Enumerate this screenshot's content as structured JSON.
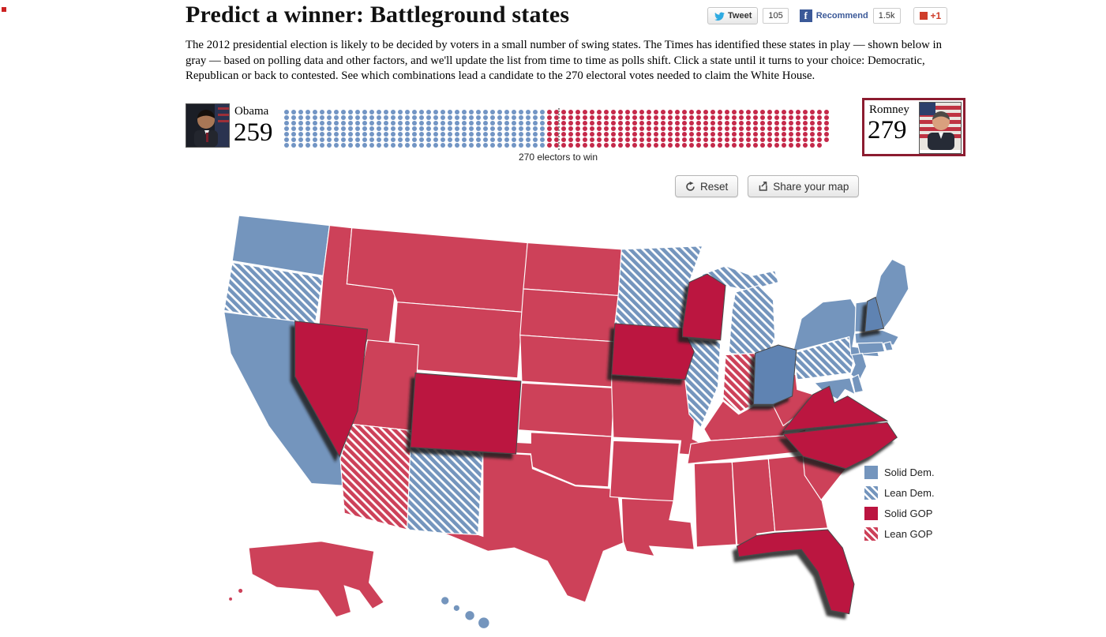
{
  "page": {
    "title": "Predict a winner: Battleground states",
    "description": "The 2012 presidential election is likely to be decided by voters in a small number of swing states. The Times has identified these states in play — shown below in gray — based on polling data and other factors, and we'll update the list from time to time as polls shift. Click a state until it turns to your choice: Democratic, Republican or back to contested. See which combinations lead a candidate to the 270 electoral votes needed to claim the White House."
  },
  "social": {
    "tweet_label": "Tweet",
    "tweet_count": "105",
    "facebook_label": "Recommend",
    "facebook_count": "1.5k",
    "gplus_label": "+1"
  },
  "icons": {
    "facebook_f": "f"
  },
  "scoreboard": {
    "obama": {
      "name": "Obama",
      "votes": 259
    },
    "romney": {
      "name": "Romney",
      "votes": 279
    },
    "total": 538,
    "threshold": 270,
    "threshold_label": "270 electors to win",
    "leader": "romney"
  },
  "toolbar": {
    "reset_label": "Reset",
    "share_label": "Share your map"
  },
  "legend": {
    "items": [
      {
        "label": "Solid Dem.",
        "style": "solid-dem"
      },
      {
        "label": "Lean Dem.",
        "style": "lean-dem"
      },
      {
        "label": "Solid GOP",
        "style": "solid-gop"
      },
      {
        "label": "Lean GOP",
        "style": "lean-gop"
      }
    ]
  },
  "colors": {
    "solid_dem": "#7495bd",
    "solid_gop": "#cd4159",
    "picked_dem": "#5e83b2",
    "picked_gop": "#bb1440",
    "dem_dot": "#7295c4",
    "gop_dot": "#c5294a",
    "leader_border": "#8c1c30"
  },
  "map": {
    "states": [
      {
        "id": "WA",
        "category": "solid-dem"
      },
      {
        "id": "OR",
        "category": "lean-dem"
      },
      {
        "id": "CA",
        "category": "solid-dem"
      },
      {
        "id": "ID",
        "category": "solid-gop"
      },
      {
        "id": "MT",
        "category": "solid-gop"
      },
      {
        "id": "WY",
        "category": "solid-gop"
      },
      {
        "id": "UT",
        "category": "solid-gop"
      },
      {
        "id": "AZ",
        "category": "lean-gop"
      },
      {
        "id": "NM",
        "category": "lean-dem"
      },
      {
        "id": "ND",
        "category": "solid-gop"
      },
      {
        "id": "SD",
        "category": "solid-gop"
      },
      {
        "id": "NE",
        "category": "solid-gop"
      },
      {
        "id": "KS",
        "category": "solid-gop"
      },
      {
        "id": "OK",
        "category": "solid-gop"
      },
      {
        "id": "TX",
        "category": "solid-gop"
      },
      {
        "id": "MN",
        "category": "lean-dem"
      },
      {
        "id": "MO",
        "category": "solid-gop"
      },
      {
        "id": "AR",
        "category": "solid-gop"
      },
      {
        "id": "LA",
        "category": "solid-gop"
      },
      {
        "id": "IL",
        "category": "lean-dem"
      },
      {
        "id": "MI",
        "category": "lean-dem"
      },
      {
        "id": "IN",
        "category": "lean-gop"
      },
      {
        "id": "KY",
        "category": "solid-gop"
      },
      {
        "id": "TN",
        "category": "solid-gop"
      },
      {
        "id": "MS",
        "category": "solid-gop"
      },
      {
        "id": "AL",
        "category": "solid-gop"
      },
      {
        "id": "GA",
        "category": "solid-gop"
      },
      {
        "id": "SC",
        "category": "solid-gop"
      },
      {
        "id": "WV",
        "category": "solid-gop"
      },
      {
        "id": "PA",
        "category": "lean-dem"
      },
      {
        "id": "NY",
        "category": "solid-dem"
      },
      {
        "id": "NJ",
        "category": "solid-dem"
      },
      {
        "id": "DE",
        "category": "solid-dem"
      },
      {
        "id": "MD",
        "category": "solid-dem"
      },
      {
        "id": "CT",
        "category": "solid-dem"
      },
      {
        "id": "RI",
        "category": "solid-dem"
      },
      {
        "id": "MA",
        "category": "solid-dem"
      },
      {
        "id": "VT",
        "category": "solid-dem"
      },
      {
        "id": "ME",
        "category": "solid-dem"
      },
      {
        "id": "AK",
        "category": "solid-gop"
      },
      {
        "id": "HI",
        "category": "solid-dem"
      },
      {
        "id": "NV",
        "category": "tossup",
        "picked": "gop"
      },
      {
        "id": "CO",
        "category": "tossup",
        "picked": "gop"
      },
      {
        "id": "IA",
        "category": "tossup",
        "picked": "gop"
      },
      {
        "id": "WI",
        "category": "tossup",
        "picked": "gop"
      },
      {
        "id": "OH",
        "category": "tossup",
        "picked": "dem"
      },
      {
        "id": "NH",
        "category": "tossup",
        "picked": "dem"
      },
      {
        "id": "VA",
        "category": "tossup",
        "picked": "gop"
      },
      {
        "id": "NC",
        "category": "tossup",
        "picked": "gop"
      },
      {
        "id": "FL",
        "category": "tossup",
        "picked": "gop"
      }
    ]
  }
}
